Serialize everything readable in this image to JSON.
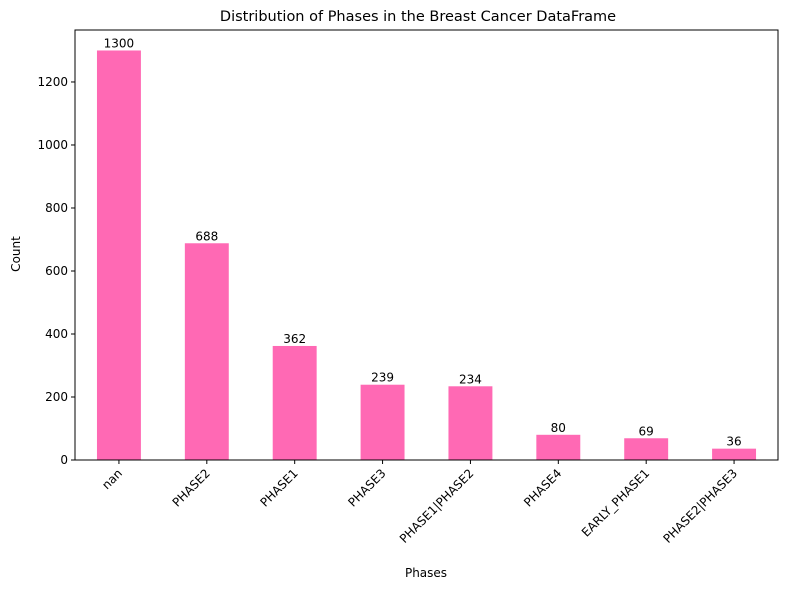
{
  "chart_data": {
    "type": "bar",
    "title": "Distribution of Phases in the Breast Cancer DataFrame",
    "xlabel": "Phases",
    "ylabel": "Count",
    "categories": [
      "nan",
      "PHASE2",
      "PHASE1",
      "PHASE3",
      "PHASE1|PHASE2",
      "PHASE4",
      "EARLY_PHASE1",
      "PHASE2|PHASE3"
    ],
    "values": [
      1300,
      688,
      362,
      239,
      234,
      80,
      69,
      36
    ],
    "data_labels": [
      "1300",
      "688",
      "362",
      "239",
      "234",
      "80",
      "69",
      "36"
    ],
    "ylim": [
      0,
      1365
    ],
    "yticks": [
      0,
      200,
      400,
      600,
      800,
      1000,
      1200
    ],
    "ytick_labels": [
      "0",
      "200",
      "400",
      "600",
      "800",
      "1000",
      "1200"
    ],
    "bar_color": "#ff69b4",
    "grid": false,
    "legend": "none"
  }
}
